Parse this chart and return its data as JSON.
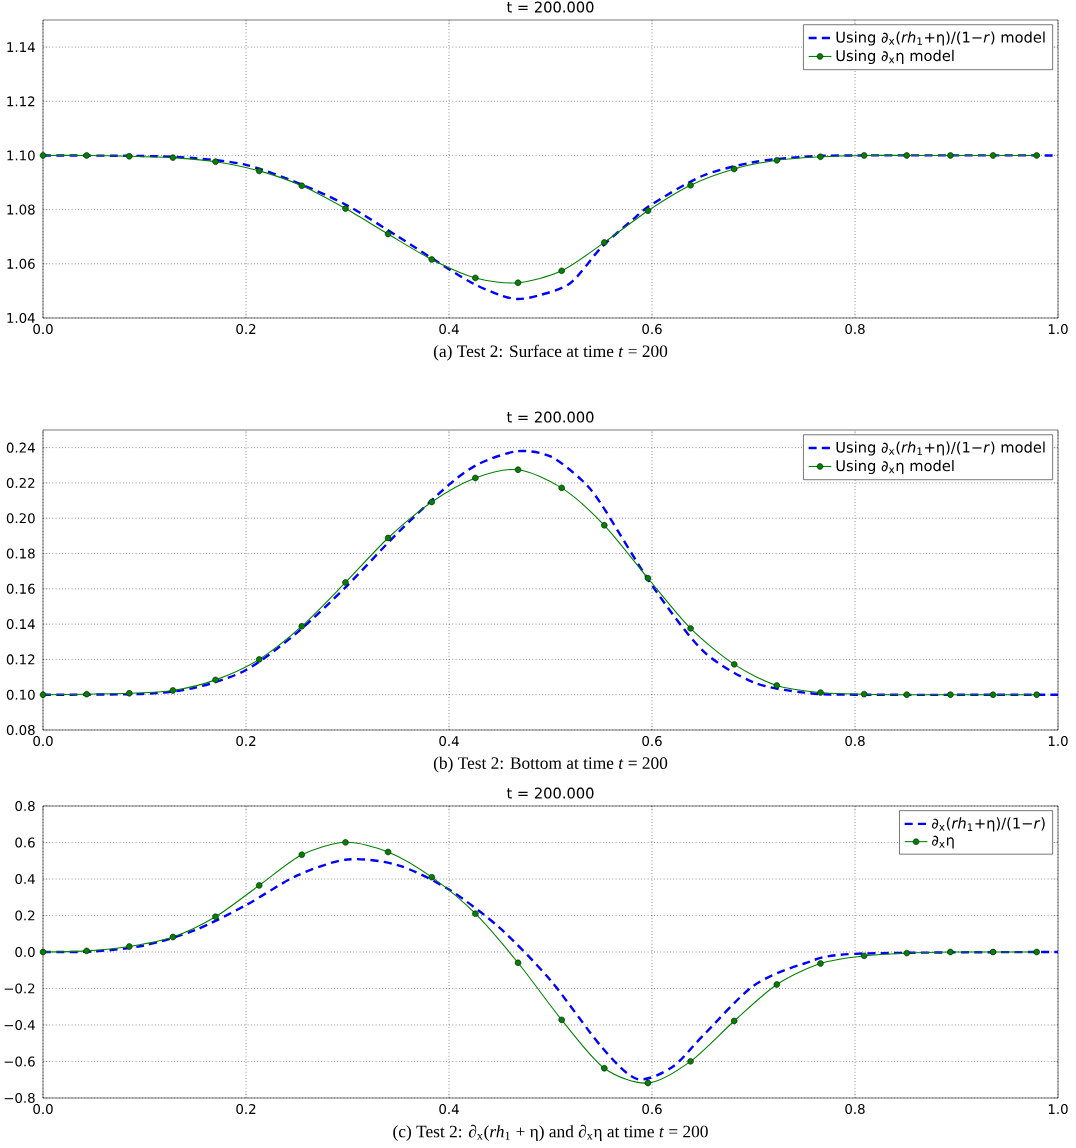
{
  "chart_data": [
    {
      "type": "line",
      "title": "t = 200.000",
      "xlim": [
        0,
        1
      ],
      "ylim": [
        1.04,
        1.15
      ],
      "xticks": [
        {
          "value": 0,
          "label": "0.0"
        },
        {
          "value": 0.2,
          "label": "0.2"
        },
        {
          "value": 0.4,
          "label": "0.4"
        },
        {
          "value": 0.6,
          "label": "0.6"
        },
        {
          "value": 0.8,
          "label": "0.8"
        },
        {
          "value": 1,
          "label": "1.0"
        }
      ],
      "yticks": [
        {
          "value": 1.04,
          "label": "1.04"
        },
        {
          "value": 1.06,
          "label": "1.06"
        },
        {
          "value": 1.08,
          "label": "1.08"
        },
        {
          "value": 1.1,
          "label": "1.10"
        },
        {
          "value": 1.12,
          "label": "1.12"
        },
        {
          "value": 1.14,
          "label": "1.14"
        }
      ],
      "grid": true,
      "legend": "top right",
      "series": [
        {
          "name": "Using ∂$_{x}$(*rh*$_{1}$+η)/(1−*r*) model",
          "color": "#0000ff",
          "line_style": "dashed",
          "marker": "none",
          "x": [
            0,
            0.1,
            0.15,
            0.2,
            0.25,
            0.3,
            0.35,
            0.4,
            0.425,
            0.45,
            0.468,
            0.49,
            0.52,
            0.55,
            0.58,
            0.6,
            0.65,
            0.7,
            0.75,
            0.8,
            1.0
          ],
          "values": [
            1.1,
            1.0998,
            1.099,
            1.0965,
            1.09,
            1.0815,
            1.07,
            1.058,
            1.0525,
            1.0485,
            1.047,
            1.0485,
            1.053,
            1.066,
            1.076,
            1.082,
            1.0925,
            1.0975,
            1.0995,
            1.1,
            1.1
          ]
        },
        {
          "name": "Using ∂$_{x}$η  model",
          "color": "#008000",
          "line_style": "solid",
          "marker": "circle",
          "x": [
            0,
            0.043,
            0.085,
            0.128,
            0.17,
            0.213,
            0.255,
            0.298,
            0.34,
            0.383,
            0.426,
            0.468,
            0.511,
            0.553,
            0.596,
            0.638,
            0.681,
            0.723,
            0.766,
            0.809,
            0.851,
            0.894,
            0.936,
            0.979
          ],
          "values": [
            1.1,
            1.1,
            1.0997,
            1.0992,
            1.0977,
            1.0943,
            1.0888,
            1.0804,
            1.071,
            1.0616,
            1.0548,
            1.053,
            1.0574,
            1.0679,
            1.0796,
            1.089,
            1.095,
            1.0982,
            1.0995,
            1.1,
            1.1,
            1.1,
            1.1,
            1.1
          ]
        }
      ],
      "annotations": [
        "(a)  Test 2: Surface at time *t* = 200"
      ]
    },
    {
      "type": "line",
      "title": "t = 200.000",
      "xlim": [
        0,
        1
      ],
      "ylim": [
        0.08,
        0.25
      ],
      "xticks": [
        {
          "value": 0,
          "label": "0.0"
        },
        {
          "value": 0.2,
          "label": "0.2"
        },
        {
          "value": 0.4,
          "label": "0.4"
        },
        {
          "value": 0.6,
          "label": "0.6"
        },
        {
          "value": 0.8,
          "label": "0.8"
        },
        {
          "value": 1,
          "label": "1.0"
        }
      ],
      "yticks": [
        {
          "value": 0.08,
          "label": "0.08"
        },
        {
          "value": 0.1,
          "label": "0.10"
        },
        {
          "value": 0.12,
          "label": "0.12"
        },
        {
          "value": 0.14,
          "label": "0.14"
        },
        {
          "value": 0.16,
          "label": "0.16"
        },
        {
          "value": 0.18,
          "label": "0.18"
        },
        {
          "value": 0.2,
          "label": "0.20"
        },
        {
          "value": 0.22,
          "label": "0.22"
        },
        {
          "value": 0.24,
          "label": "0.24"
        }
      ],
      "grid": true,
      "legend": "top right",
      "series": [
        {
          "name": "Using ∂$_{x}$(*rh*$_{1}$+η)/(1−*r*) model",
          "color": "#0000ff",
          "line_style": "dashed",
          "marker": "none",
          "x": [
            0,
            0.1,
            0.15,
            0.2,
            0.25,
            0.3,
            0.35,
            0.4,
            0.43,
            0.468,
            0.5,
            0.53,
            0.55,
            0.6,
            0.65,
            0.7,
            0.75,
            0.8,
            1.0
          ],
          "values": [
            0.1,
            0.1005,
            0.104,
            0.114,
            0.135,
            0.162,
            0.192,
            0.219,
            0.231,
            0.238,
            0.235,
            0.222,
            0.208,
            0.162,
            0.125,
            0.107,
            0.1012,
            0.1,
            0.1
          ]
        },
        {
          "name": "Using ∂$_{x}$η  model",
          "color": "#008000",
          "line_style": "solid",
          "marker": "circle",
          "x": [
            0,
            0.043,
            0.085,
            0.128,
            0.17,
            0.213,
            0.255,
            0.298,
            0.34,
            0.383,
            0.426,
            0.468,
            0.511,
            0.553,
            0.596,
            0.638,
            0.681,
            0.723,
            0.766,
            0.809,
            0.851,
            0.894,
            0.936,
            0.979
          ],
          "values": [
            0.1,
            0.1003,
            0.1008,
            0.1024,
            0.1084,
            0.12,
            0.1388,
            0.1636,
            0.1888,
            0.2092,
            0.2228,
            0.2275,
            0.2172,
            0.196,
            0.166,
            0.1376,
            0.1172,
            0.1052,
            0.1012,
            0.1003,
            0.1,
            0.1,
            0.1,
            0.1
          ]
        }
      ],
      "annotations": [
        "(b)  Test 2: Bottom at time *t* = 200"
      ]
    },
    {
      "type": "line",
      "title": "t = 200.000",
      "xlim": [
        0,
        1
      ],
      "ylim": [
        -0.8,
        0.8
      ],
      "xticks": [
        {
          "value": 0,
          "label": "0.0"
        },
        {
          "value": 0.2,
          "label": "0.2"
        },
        {
          "value": 0.4,
          "label": "0.4"
        },
        {
          "value": 0.6,
          "label": "0.6"
        },
        {
          "value": 0.8,
          "label": "0.8"
        },
        {
          "value": 1,
          "label": "1.0"
        }
      ],
      "yticks": [
        {
          "value": -0.8,
          "label": "−0.8"
        },
        {
          "value": -0.6,
          "label": "−0.6"
        },
        {
          "value": -0.4,
          "label": "−0.4"
        },
        {
          "value": -0.2,
          "label": "−0.2"
        },
        {
          "value": 0,
          "label": "0.0"
        },
        {
          "value": 0.2,
          "label": "0.2"
        },
        {
          "value": 0.4,
          "label": "0.4"
        },
        {
          "value": 0.6,
          "label": "0.6"
        },
        {
          "value": 0.8,
          "label": "0.8"
        }
      ],
      "grid": true,
      "legend": "top right",
      "series": [
        {
          "name": "∂$_{x}$(*rh*$_{1}$+η)/(1−*r*)",
          "color": "#0000ff",
          "line_style": "dashed",
          "marker": "none",
          "x": [
            0,
            0.05,
            0.1,
            0.15,
            0.2,
            0.25,
            0.3,
            0.35,
            0.4,
            0.45,
            0.5,
            0.55,
            0.585,
            0.62,
            0.65,
            0.7,
            0.75,
            0.8,
            1.0
          ],
          "values": [
            0,
            0.003,
            0.036,
            0.12,
            0.257,
            0.418,
            0.507,
            0.475,
            0.342,
            0.132,
            -0.155,
            -0.518,
            -0.695,
            -0.63,
            -0.46,
            -0.185,
            -0.063,
            -0.01,
            0
          ]
        },
        {
          "name": "∂$_{x}$η",
          "color": "#008000",
          "line_style": "solid",
          "marker": "circle",
          "x": [
            0,
            0.043,
            0.085,
            0.128,
            0.17,
            0.213,
            0.255,
            0.298,
            0.34,
            0.383,
            0.426,
            0.468,
            0.511,
            0.553,
            0.596,
            0.638,
            0.681,
            0.723,
            0.766,
            0.809,
            0.851,
            0.894,
            0.936,
            0.979
          ],
          "values": [
            0,
            0.006,
            0.03,
            0.082,
            0.193,
            0.365,
            0.533,
            0.601,
            0.548,
            0.41,
            0.21,
            -0.059,
            -0.372,
            -0.637,
            -0.718,
            -0.599,
            -0.378,
            -0.178,
            -0.063,
            -0.021,
            -0.006,
            0,
            0,
            0
          ]
        }
      ],
      "annotations": [
        "(c)  Test 2: ∂$_{x}$(*rh*$_{1}$ + η) and ∂$_{x}$η at time *t* = 200"
      ]
    }
  ]
}
